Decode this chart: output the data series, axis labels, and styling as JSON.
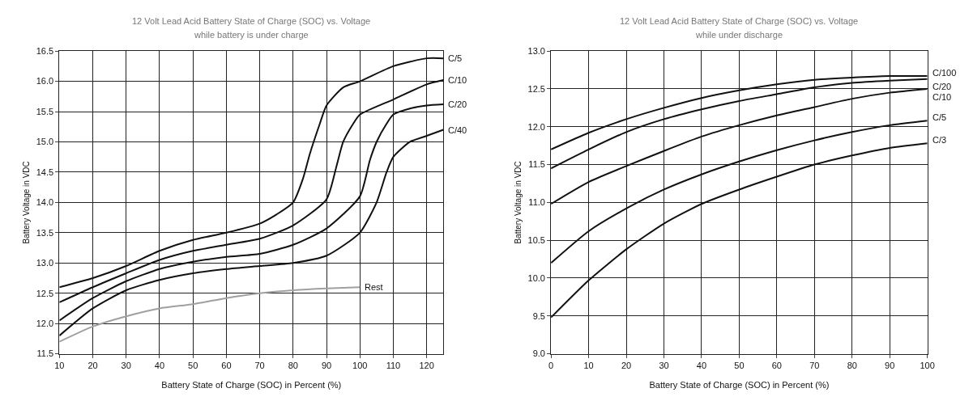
{
  "chart_data": [
    {
      "type": "line",
      "title": "12 Volt Lead Acid Battery State of Charge (SOC) vs. Voltage",
      "subtitle": "while battery is under charge",
      "xlabel": "Battery State of Charge (SOC) in Percent (%)",
      "ylabel": "Battery Voltage in VDC",
      "xlim": [
        10,
        125
      ],
      "xticks": [
        10,
        20,
        30,
        40,
        50,
        60,
        70,
        80,
        90,
        100,
        110,
        120
      ],
      "ylim": [
        11.5,
        16.5
      ],
      "yticks": [
        {
          "value": 11.5,
          "label": "11.5"
        },
        {
          "value": 12,
          "label": "12.0"
        },
        {
          "value": 12.5,
          "label": "12.5"
        },
        {
          "value": 13,
          "label": "13.0"
        },
        {
          "value": 13.5,
          "label": "13.5"
        },
        {
          "value": 14,
          "label": "14.0"
        },
        {
          "value": 14.5,
          "label": "14.5"
        },
        {
          "value": 15,
          "label": "15.0"
        },
        {
          "value": 15.5,
          "label": "15.5"
        },
        {
          "value": 16,
          "label": "16.0"
        },
        {
          "value": 16.5,
          "label": "16.5"
        }
      ],
      "grid": true,
      "legend": false,
      "marker": "none",
      "line_style": "solid",
      "series": [
        {
          "name": "C/5",
          "color": "#111111",
          "x": [
            10,
            20,
            30,
            40,
            50,
            60,
            70,
            75,
            80,
            83,
            85,
            88,
            90,
            95,
            100,
            110,
            120,
            125
          ],
          "values": [
            12.6,
            12.75,
            12.95,
            13.2,
            13.38,
            13.5,
            13.65,
            13.8,
            14.0,
            14.4,
            14.8,
            15.3,
            15.6,
            15.9,
            16.0,
            16.25,
            16.38,
            16.38
          ]
        },
        {
          "name": "C/10",
          "color": "#111111",
          "x": [
            10,
            20,
            30,
            40,
            50,
            60,
            70,
            80,
            90,
            93,
            95,
            98,
            100,
            110,
            120,
            125
          ],
          "values": [
            12.35,
            12.6,
            12.83,
            13.05,
            13.2,
            13.3,
            13.4,
            13.62,
            14.05,
            14.6,
            15.0,
            15.3,
            15.45,
            15.7,
            15.95,
            16.02
          ]
        },
        {
          "name": "C/20",
          "color": "#111111",
          "x": [
            10,
            20,
            30,
            40,
            50,
            60,
            70,
            80,
            90,
            100,
            103,
            105,
            108,
            110,
            115,
            120,
            125
          ],
          "values": [
            12.05,
            12.42,
            12.7,
            12.9,
            13.02,
            13.1,
            13.15,
            13.3,
            13.57,
            14.1,
            14.7,
            15.0,
            15.3,
            15.45,
            15.55,
            15.6,
            15.62
          ]
        },
        {
          "name": "C/40",
          "color": "#111111",
          "x": [
            10,
            20,
            30,
            40,
            50,
            60,
            70,
            80,
            90,
            100,
            105,
            108,
            110,
            115,
            120,
            125
          ],
          "values": [
            11.8,
            12.25,
            12.55,
            12.72,
            12.83,
            12.9,
            12.95,
            13.0,
            13.12,
            13.5,
            14.0,
            14.5,
            14.75,
            15.0,
            15.1,
            15.2
          ]
        },
        {
          "name": "Rest",
          "color": "#a0a0a0",
          "x": [
            10,
            20,
            30,
            40,
            50,
            60,
            70,
            80,
            90,
            100
          ],
          "values": [
            11.7,
            11.95,
            12.12,
            12.25,
            12.32,
            12.42,
            12.5,
            12.55,
            12.58,
            12.6
          ]
        }
      ]
    },
    {
      "type": "line",
      "title": "12 Volt Lead Acid Battery State of Charge (SOC) vs. Voltage",
      "subtitle": "while under discharge",
      "xlabel": "Battery State of Charge (SOC) in Percent (%)",
      "ylabel": "Battery Voltage in VDC",
      "xlim": [
        0,
        100
      ],
      "xticks": [
        0,
        10,
        20,
        30,
        40,
        50,
        60,
        70,
        80,
        90,
        100
      ],
      "ylim": [
        9,
        13
      ],
      "yticks": [
        {
          "value": 9,
          "label": "9.0"
        },
        {
          "value": 9.5,
          "label": "9.5"
        },
        {
          "value": 10,
          "label": "10.0"
        },
        {
          "value": 10.5,
          "label": "10.5"
        },
        {
          "value": 11,
          "label": "11.0"
        },
        {
          "value": 11.5,
          "label": "11.5"
        },
        {
          "value": 12,
          "label": "12.0"
        },
        {
          "value": 12.5,
          "label": "12.5"
        },
        {
          "value": 13,
          "label": "13.0"
        }
      ],
      "grid": true,
      "legend": false,
      "marker": "none",
      "line_style": "solid",
      "x": [
        0,
        10,
        20,
        30,
        40,
        50,
        60,
        70,
        80,
        90,
        100
      ],
      "series": [
        {
          "name": "C/100",
          "color": "#111111",
          "values": [
            11.7,
            11.92,
            12.1,
            12.25,
            12.38,
            12.48,
            12.56,
            12.62,
            12.65,
            12.67,
            12.67
          ]
        },
        {
          "name": "C/20",
          "color": "#111111",
          "values": [
            11.45,
            11.7,
            11.93,
            12.1,
            12.23,
            12.34,
            12.43,
            12.52,
            12.58,
            12.61,
            12.63
          ]
        },
        {
          "name": "C/10",
          "color": "#111111",
          "values": [
            10.98,
            11.27,
            11.48,
            11.68,
            11.87,
            12.02,
            12.15,
            12.26,
            12.37,
            12.45,
            12.5
          ]
        },
        {
          "name": "C/5",
          "color": "#111111",
          "values": [
            10.2,
            10.62,
            10.92,
            11.17,
            11.37,
            11.54,
            11.69,
            11.82,
            11.93,
            12.02,
            12.08
          ]
        },
        {
          "name": "C/3",
          "color": "#111111",
          "values": [
            9.48,
            9.97,
            10.38,
            10.72,
            10.98,
            11.17,
            11.34,
            11.5,
            11.62,
            11.72,
            11.78
          ]
        }
      ]
    }
  ]
}
